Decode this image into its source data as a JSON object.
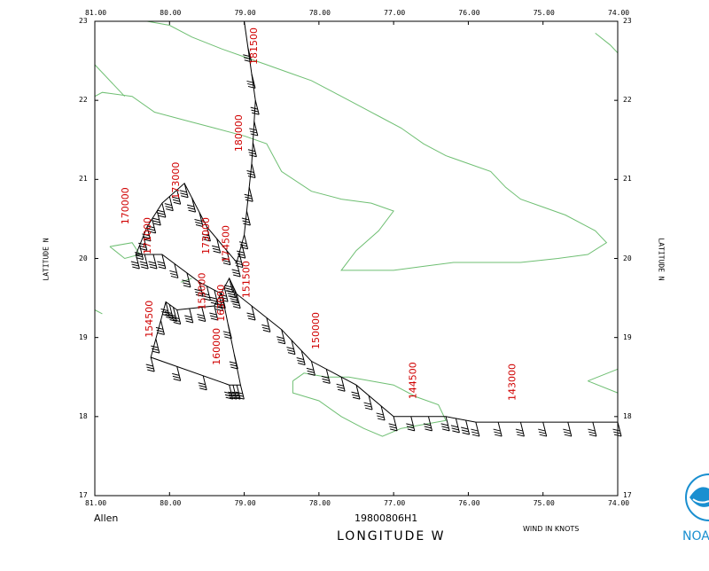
{
  "map": {
    "lon_range": [
      -81.0,
      -74.0
    ],
    "lat_range": [
      17.0,
      23.0
    ],
    "lon_ticks": [
      "81.00",
      "80.00",
      "79.00",
      "78.00",
      "77.00",
      "76.00",
      "75.00",
      "74.00"
    ],
    "lat_ticks": [
      "17",
      "18",
      "19",
      "20",
      "21",
      "22",
      "23"
    ],
    "coast_color": "#6fbf73",
    "track_color": "#000000",
    "time_label_color": "#d00000"
  },
  "labels": {
    "storm_name": "Allen",
    "mission_id": "19800806H1",
    "x_axis_title": "LONGITUDE   W",
    "y_axis_title": "LATITUDE   N",
    "wind_units": "WIND IN KNOTS",
    "logo_text": "NOA"
  },
  "time_labels": [
    {
      "text": "181500",
      "lon": -78.83,
      "lat": 22.45
    },
    {
      "text": "180000",
      "lon": -79.03,
      "lat": 21.35
    },
    {
      "text": "173000",
      "lon": -79.87,
      "lat": 20.75
    },
    {
      "text": "170000",
      "lon": -80.55,
      "lat": 20.43
    },
    {
      "text": "171000",
      "lon": -80.25,
      "lat": 20.05
    },
    {
      "text": "173000",
      "lon": -79.47,
      "lat": 20.05
    },
    {
      "text": "174500",
      "lon": -79.2,
      "lat": 19.95
    },
    {
      "text": "151500",
      "lon": -78.93,
      "lat": 19.5
    },
    {
      "text": "153000",
      "lon": -79.52,
      "lat": 19.35
    },
    {
      "text": "163000",
      "lon": -79.27,
      "lat": 19.2
    },
    {
      "text": "154500",
      "lon": -80.23,
      "lat": 19.0
    },
    {
      "text": "160000",
      "lon": -79.33,
      "lat": 18.65
    },
    {
      "text": "150000",
      "lon": -78.0,
      "lat": 18.85
    },
    {
      "text": "144500",
      "lon": -76.7,
      "lat": 18.22
    },
    {
      "text": "143000",
      "lon": -75.37,
      "lat": 18.2
    }
  ]
}
